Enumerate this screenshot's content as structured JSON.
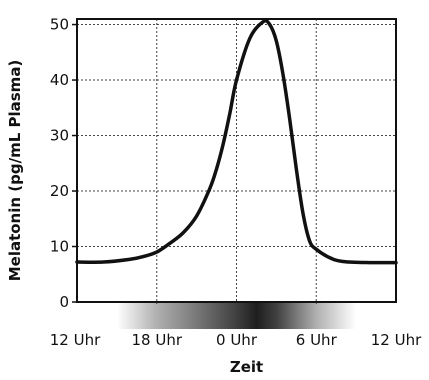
{
  "chart_data": {
    "type": "line",
    "title": "",
    "xlabel": "Zeit",
    "ylabel": "Melatonin (pg/mL Plasma)",
    "xlim": [
      12,
      36
    ],
    "ylim": [
      0,
      51
    ],
    "grid": true,
    "x_ticks": [
      12,
      18,
      24,
      30,
      36
    ],
    "x_tick_labels": [
      "12 Uhr",
      "18 Uhr",
      "0 Uhr",
      "6 Uhr",
      "12 Uhr"
    ],
    "y_ticks": [
      0,
      10,
      20,
      30,
      40,
      50
    ],
    "y_tick_labels": [
      "0",
      "10",
      "20",
      "30",
      "40",
      "50"
    ],
    "series": [
      {
        "x": [
          12,
          14,
          16,
          17,
          18,
          19,
          20,
          21,
          22,
          22.5,
          23,
          23.5,
          24,
          25,
          26,
          26.5,
          27,
          27.5,
          28,
          28.5,
          29,
          29.5,
          30,
          31,
          32,
          34,
          36
        ],
        "y": [
          7.2,
          7.2,
          7.7,
          8.2,
          9.0,
          10.6,
          12.5,
          15.5,
          20.5,
          24.0,
          28.5,
          34.0,
          40.0,
          47.5,
          50.5,
          50.0,
          47.0,
          41.0,
          33.0,
          24.0,
          16.0,
          11.0,
          9.5,
          8.0,
          7.3,
          7.1,
          7.1
        ],
        "color": "#111111"
      }
    ],
    "background_gradient": {
      "description_stops_x": [
        15,
        18,
        24,
        25.5,
        27,
        30,
        33
      ],
      "darkness": [
        0.0,
        0.35,
        0.85,
        1.0,
        0.85,
        0.35,
        0.0
      ]
    }
  }
}
